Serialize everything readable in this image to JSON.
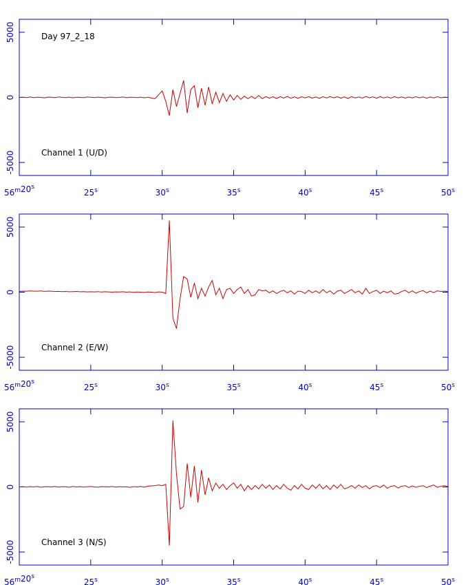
{
  "chart_data": [
    {
      "type": "line",
      "annotations": [
        "Day 97_2_18",
        "Channel 1 (U/D)"
      ],
      "x": [
        20,
        20.25,
        20.5,
        20.75,
        21,
        21.25,
        21.5,
        21.75,
        22,
        22.25,
        22.5,
        22.75,
        23,
        23.25,
        23.5,
        23.75,
        24,
        24.25,
        24.5,
        24.75,
        25,
        25.25,
        25.5,
        25.75,
        26,
        26.25,
        26.5,
        26.75,
        27,
        27.25,
        27.5,
        27.75,
        28,
        28.25,
        28.5,
        28.75,
        29,
        29.25,
        29.5,
        29.75,
        30,
        30.25,
        30.5,
        30.75,
        31,
        31.25,
        31.5,
        31.75,
        32,
        32.25,
        32.5,
        32.75,
        33,
        33.25,
        33.5,
        33.75,
        34,
        34.25,
        34.5,
        34.75,
        35,
        35.25,
        35.5,
        35.75,
        36,
        36.25,
        36.5,
        36.75,
        37,
        37.25,
        37.5,
        37.75,
        38,
        38.25,
        38.5,
        38.75,
        39,
        39.25,
        39.5,
        39.75,
        40,
        40.25,
        40.5,
        40.75,
        41,
        41.25,
        41.5,
        41.75,
        42,
        42.25,
        42.5,
        42.75,
        43,
        43.25,
        43.5,
        43.75,
        44,
        44.25,
        44.5,
        44.75,
        45,
        45.25,
        45.5,
        45.75,
        46,
        46.25,
        46.5,
        46.75,
        47,
        47.25,
        47.5,
        47.75,
        48,
        48.25,
        48.5,
        48.75,
        49,
        49.25,
        49.5,
        49.75,
        50
      ],
      "series": [
        {
          "color": "#cc0000",
          "values": [
            0,
            20,
            -10,
            30,
            -20,
            10,
            0,
            -30,
            20,
            10,
            -20,
            30,
            0,
            -10,
            20,
            -30,
            10,
            0,
            -20,
            30,
            10,
            -10,
            20,
            0,
            -30,
            10,
            20,
            -10,
            0,
            30,
            -20,
            10,
            0,
            -10,
            20,
            -30,
            10,
            -50,
            -100,
            200,
            500,
            -300,
            -1400,
            600,
            -700,
            300,
            1300,
            -1200,
            600,
            900,
            -800,
            700,
            -600,
            800,
            -500,
            400,
            -400,
            300,
            -300,
            200,
            -200,
            150,
            -150,
            100,
            -100,
            80,
            -100,
            150,
            -100,
            60,
            -60,
            50,
            -80,
            60,
            -50,
            70,
            -60,
            40,
            -70,
            50,
            -40,
            60,
            -50,
            30,
            -70,
            50,
            -40,
            60,
            -30,
            50,
            -60,
            40,
            -80,
            60,
            -40,
            30,
            -50,
            70,
            -30,
            40,
            -60,
            50,
            -40,
            30,
            -50,
            60,
            -30,
            40,
            -50,
            30,
            -40,
            50,
            -30,
            40,
            -60,
            30,
            -40,
            50,
            -30,
            20,
            0
          ]
        }
      ],
      "xlim": [
        20,
        50
      ],
      "ylim": [
        -6000,
        6000
      ],
      "xticks": [
        {
          "value": 20,
          "label": "56m20s"
        },
        {
          "value": 25,
          "label": "25s"
        },
        {
          "value": 30,
          "label": "30s"
        },
        {
          "value": 35,
          "label": "35s"
        },
        {
          "value": 40,
          "label": "40s"
        },
        {
          "value": 45,
          "label": "45s"
        },
        {
          "value": 50,
          "label": "50s"
        }
      ],
      "yticks": [
        -5000,
        0,
        5000
      ]
    },
    {
      "type": "line",
      "annotations": [
        "Channel 2 (E/W)"
      ],
      "x": [
        20,
        20.25,
        20.5,
        20.75,
        21,
        21.25,
        21.5,
        21.75,
        22,
        22.25,
        22.5,
        22.75,
        23,
        23.25,
        23.5,
        23.75,
        24,
        24.25,
        24.5,
        24.75,
        25,
        25.25,
        25.5,
        25.75,
        26,
        26.25,
        26.5,
        26.75,
        27,
        27.25,
        27.5,
        27.75,
        28,
        28.25,
        28.5,
        28.75,
        29,
        29.25,
        29.5,
        29.75,
        30,
        30.25,
        30.5,
        30.75,
        31,
        31.25,
        31.5,
        31.75,
        32,
        32.25,
        32.5,
        32.75,
        33,
        33.25,
        33.5,
        33.75,
        34,
        34.25,
        34.5,
        34.75,
        35,
        35.25,
        35.5,
        35.75,
        36,
        36.25,
        36.5,
        36.75,
        37,
        37.25,
        37.5,
        37.75,
        38,
        38.25,
        38.5,
        38.75,
        39,
        39.25,
        39.5,
        39.75,
        40,
        40.25,
        40.5,
        40.75,
        41,
        41.25,
        41.5,
        41.75,
        42,
        42.25,
        42.5,
        42.75,
        43,
        43.25,
        43.5,
        43.75,
        44,
        44.25,
        44.5,
        44.75,
        45,
        45.25,
        45.5,
        45.75,
        46,
        46.25,
        46.5,
        46.75,
        47,
        47.25,
        47.5,
        47.75,
        48,
        48.25,
        48.5,
        48.75,
        49,
        49.25,
        49.5,
        49.75,
        50
      ],
      "series": [
        {
          "color": "#cc0000",
          "values": [
            60,
            80,
            70,
            90,
            80,
            70,
            90,
            60,
            80,
            70,
            50,
            60,
            40,
            50,
            30,
            40,
            50,
            30,
            40,
            20,
            30,
            20,
            40,
            10,
            30,
            20,
            0,
            20,
            10,
            30,
            0,
            20,
            -10,
            10,
            0,
            -20,
            10,
            0,
            -30,
            20,
            0,
            -100,
            5500,
            -2000,
            -2800,
            -500,
            1200,
            1000,
            -400,
            700,
            -500,
            300,
            -300,
            400,
            900,
            -200,
            300,
            -500,
            200,
            300,
            -100,
            200,
            400,
            -100,
            200,
            -300,
            -200,
            200,
            100,
            150,
            -50,
            100,
            -100,
            50,
            150,
            -50,
            100,
            -150,
            80,
            50,
            -100,
            150,
            -50,
            100,
            -80,
            200,
            -50,
            100,
            -150,
            80,
            150,
            -100,
            50,
            200,
            -50,
            100,
            -150,
            300,
            -100,
            50,
            150,
            -100,
            80,
            -50,
            100,
            -150,
            -100,
            50,
            150,
            -50,
            100,
            -80,
            50,
            120,
            -50,
            80,
            -30,
            100,
            50,
            80,
            40
          ]
        }
      ],
      "xlim": [
        20,
        50
      ],
      "ylim": [
        -6000,
        6000
      ],
      "xticks": [
        {
          "value": 20,
          "label": "56m20s"
        },
        {
          "value": 25,
          "label": "25s"
        },
        {
          "value": 30,
          "label": "30s"
        },
        {
          "value": 35,
          "label": "35s"
        },
        {
          "value": 40,
          "label": "40s"
        },
        {
          "value": 45,
          "label": "45s"
        },
        {
          "value": 50,
          "label": "50s"
        }
      ],
      "yticks": [
        -5000,
        0,
        5000
      ]
    },
    {
      "type": "line",
      "annotations": [
        "Channel 3 (N/S)"
      ],
      "x": [
        20,
        20.25,
        20.5,
        20.75,
        21,
        21.25,
        21.5,
        21.75,
        22,
        22.25,
        22.5,
        22.75,
        23,
        23.25,
        23.5,
        23.75,
        24,
        24.25,
        24.5,
        24.75,
        25,
        25.25,
        25.5,
        25.75,
        26,
        26.25,
        26.5,
        26.75,
        27,
        27.25,
        27.5,
        27.75,
        28,
        28.25,
        28.5,
        28.75,
        29,
        29.25,
        29.5,
        29.75,
        30,
        30.25,
        30.5,
        30.75,
        31,
        31.25,
        31.5,
        31.75,
        32,
        32.25,
        32.5,
        32.75,
        33,
        33.25,
        33.5,
        33.75,
        34,
        34.25,
        34.5,
        34.75,
        35,
        35.25,
        35.5,
        35.75,
        36,
        36.25,
        36.5,
        36.75,
        37,
        37.25,
        37.5,
        37.75,
        38,
        38.25,
        38.5,
        38.75,
        39,
        39.25,
        39.5,
        39.75,
        40,
        40.25,
        40.5,
        40.75,
        41,
        41.25,
        41.5,
        41.75,
        42,
        42.25,
        42.5,
        42.75,
        43,
        43.25,
        43.5,
        43.75,
        44,
        44.25,
        44.5,
        44.75,
        45,
        45.25,
        45.5,
        45.75,
        46,
        46.25,
        46.5,
        46.75,
        47,
        47.25,
        47.5,
        47.75,
        48,
        48.25,
        48.5,
        48.75,
        49,
        49.25,
        49.5,
        49.75,
        50
      ],
      "series": [
        {
          "color": "#cc0000",
          "values": [
            0,
            20,
            -10,
            20,
            0,
            30,
            -20,
            10,
            20,
            0,
            30,
            -10,
            20,
            10,
            -20,
            30,
            0,
            20,
            -10,
            10,
            30,
            0,
            -20,
            20,
            10,
            0,
            30,
            -10,
            20,
            0,
            10,
            -30,
            20,
            0,
            30,
            -20,
            60,
            80,
            100,
            150,
            100,
            200,
            -4500,
            5100,
            1000,
            -1700,
            -1500,
            1800,
            -800,
            1600,
            -1200,
            1300,
            -600,
            700,
            -300,
            300,
            -100,
            200,
            -200,
            100,
            300,
            -100,
            200,
            -300,
            100,
            -200,
            100,
            -150,
            200,
            -100,
            150,
            -200,
            100,
            -150,
            200,
            -100,
            -250,
            100,
            -150,
            200,
            -100,
            -200,
            150,
            -100,
            200,
            -150,
            100,
            -200,
            150,
            -100,
            200,
            -150,
            -50,
            100,
            -100,
            150,
            -50,
            100,
            -150,
            50,
            100,
            -50,
            150,
            -100,
            50,
            100,
            -80,
            50,
            100,
            -50,
            80,
            -30,
            50,
            100,
            -50,
            60,
            150,
            -30,
            50,
            100,
            30
          ]
        }
      ],
      "xlim": [
        20,
        50
      ],
      "ylim": [
        -6000,
        6000
      ],
      "xticks": [
        {
          "value": 20,
          "label": "56m20s"
        },
        {
          "value": 25,
          "label": "25s"
        },
        {
          "value": 30,
          "label": "30s"
        },
        {
          "value": 35,
          "label": "35s"
        },
        {
          "value": 40,
          "label": "40s"
        },
        {
          "value": 45,
          "label": "45s"
        },
        {
          "value": 50,
          "label": "50s"
        }
      ],
      "yticks": [
        -5000,
        0,
        5000
      ]
    }
  ]
}
